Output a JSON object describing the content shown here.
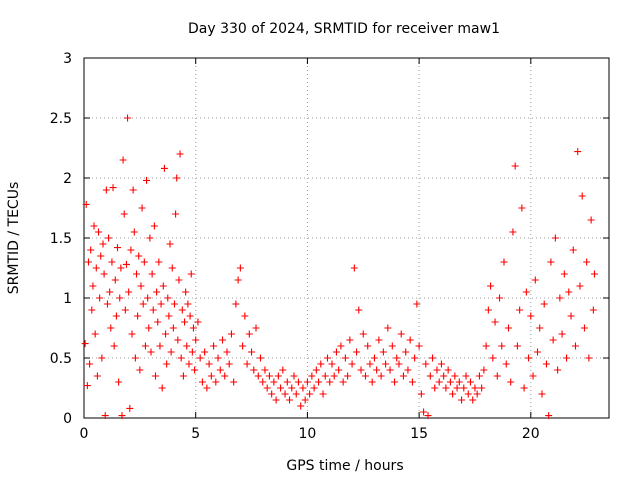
{
  "chart_data": {
    "type": "scatter",
    "title": "Day 330 of 2024, SRMTID for receiver maw1",
    "xlabel": "GPS time / hours",
    "ylabel": "SRMTID / TECUs",
    "xlim": [
      0,
      23.5
    ],
    "ylim": [
      0,
      3
    ],
    "x_ticks": [
      0,
      5,
      10,
      15,
      20
    ],
    "x_tick_labels": [
      "0",
      "5",
      "10",
      "15",
      "20"
    ],
    "y_ticks": [
      0,
      0.5,
      1,
      1.5,
      2,
      2.5,
      3
    ],
    "y_tick_labels": [
      "0",
      "0.5",
      "1",
      "1.5",
      "2",
      "2.5",
      "3"
    ],
    "grid": true,
    "marker": "+",
    "marker_color": "#ff0000",
    "series": [
      {
        "name": "SRMTID",
        "points": [
          [
            0.05,
            0.62
          ],
          [
            0.1,
            1.78
          ],
          [
            0.15,
            0.27
          ],
          [
            0.2,
            1.3
          ],
          [
            0.25,
            0.45
          ],
          [
            0.3,
            1.4
          ],
          [
            0.35,
            0.9
          ],
          [
            0.4,
            1.1
          ],
          [
            0.45,
            1.6
          ],
          [
            0.5,
            0.7
          ],
          [
            0.55,
            1.25
          ],
          [
            0.6,
            0.35
          ],
          [
            0.65,
            1.55
          ],
          [
            0.7,
            1.0
          ],
          [
            0.75,
            1.35
          ],
          [
            0.8,
            0.5
          ],
          [
            0.85,
            1.45
          ],
          [
            0.9,
            1.2
          ],
          [
            0.95,
            0.02
          ],
          [
            1.0,
            1.9
          ],
          [
            1.05,
            0.95
          ],
          [
            1.1,
            1.5
          ],
          [
            1.15,
            1.05
          ],
          [
            1.2,
            0.75
          ],
          [
            1.25,
            1.3
          ],
          [
            1.3,
            1.92
          ],
          [
            1.35,
            0.6
          ],
          [
            1.4,
            1.15
          ],
          [
            1.45,
            0.85
          ],
          [
            1.5,
            1.42
          ],
          [
            1.55,
            0.3
          ],
          [
            1.6,
            1.0
          ],
          [
            1.65,
            1.25
          ],
          [
            1.7,
            0.02
          ],
          [
            1.75,
            2.15
          ],
          [
            1.8,
            1.7
          ],
          [
            1.85,
            0.9
          ],
          [
            1.9,
            1.28
          ],
          [
            1.95,
            2.5
          ],
          [
            2.0,
            1.05
          ],
          [
            2.05,
            0.08
          ],
          [
            2.1,
            1.4
          ],
          [
            2.15,
            0.7
          ],
          [
            2.2,
            1.9
          ],
          [
            2.25,
            1.55
          ],
          [
            2.3,
            0.5
          ],
          [
            2.35,
            1.2
          ],
          [
            2.4,
            0.85
          ],
          [
            2.45,
            1.35
          ],
          [
            2.5,
            0.4
          ],
          [
            2.55,
            1.1
          ],
          [
            2.6,
            1.75
          ],
          [
            2.65,
            0.95
          ],
          [
            2.7,
            1.3
          ],
          [
            2.75,
            0.6
          ],
          [
            2.8,
            1.98
          ],
          [
            2.85,
            1.0
          ],
          [
            2.9,
            0.75
          ],
          [
            2.95,
            1.5
          ],
          [
            3.0,
            0.55
          ],
          [
            3.05,
            1.2
          ],
          [
            3.1,
            0.9
          ],
          [
            3.15,
            1.6
          ],
          [
            3.2,
            0.35
          ],
          [
            3.25,
            1.05
          ],
          [
            3.3,
            0.8
          ],
          [
            3.35,
            1.3
          ],
          [
            3.4,
            0.6
          ],
          [
            3.45,
            0.95
          ],
          [
            3.5,
            0.25
          ],
          [
            3.55,
            1.1
          ],
          [
            3.6,
            2.08
          ],
          [
            3.65,
            0.7
          ],
          [
            3.7,
            0.45
          ],
          [
            3.75,
            1.0
          ],
          [
            3.8,
            0.85
          ],
          [
            3.85,
            1.45
          ],
          [
            3.9,
            0.55
          ],
          [
            3.95,
            1.25
          ],
          [
            4.0,
            0.75
          ],
          [
            4.05,
            0.95
          ],
          [
            4.1,
            1.7
          ],
          [
            4.15,
            2.0
          ],
          [
            4.2,
            0.65
          ],
          [
            4.25,
            1.15
          ],
          [
            4.3,
            2.2
          ],
          [
            4.35,
            0.5
          ],
          [
            4.4,
            0.9
          ],
          [
            4.45,
            0.35
          ],
          [
            4.5,
            0.8
          ],
          [
            4.55,
            1.05
          ],
          [
            4.6,
            0.6
          ],
          [
            4.65,
            0.95
          ],
          [
            4.7,
            0.45
          ],
          [
            4.75,
            0.85
          ],
          [
            4.8,
            1.2
          ],
          [
            4.85,
            0.55
          ],
          [
            4.9,
            0.75
          ],
          [
            4.95,
            0.4
          ],
          [
            5.0,
            0.65
          ],
          [
            5.1,
            0.8
          ],
          [
            5.2,
            0.5
          ],
          [
            5.3,
            0.3
          ],
          [
            5.4,
            0.55
          ],
          [
            5.5,
            0.25
          ],
          [
            5.6,
            0.45
          ],
          [
            5.7,
            0.35
          ],
          [
            5.8,
            0.6
          ],
          [
            5.9,
            0.3
          ],
          [
            6.0,
            0.5
          ],
          [
            6.1,
            0.4
          ],
          [
            6.2,
            0.65
          ],
          [
            6.3,
            0.35
          ],
          [
            6.4,
            0.55
          ],
          [
            6.5,
            0.45
          ],
          [
            6.6,
            0.7
          ],
          [
            6.7,
            0.3
          ],
          [
            6.8,
            0.95
          ],
          [
            6.9,
            1.15
          ],
          [
            7.0,
            1.25
          ],
          [
            7.1,
            0.6
          ],
          [
            7.2,
            0.85
          ],
          [
            7.3,
            0.45
          ],
          [
            7.4,
            0.7
          ],
          [
            7.5,
            0.55
          ],
          [
            7.6,
            0.4
          ],
          [
            7.7,
            0.75
          ],
          [
            7.8,
            0.35
          ],
          [
            7.9,
            0.5
          ],
          [
            8.0,
            0.3
          ],
          [
            8.1,
            0.4
          ],
          [
            8.2,
            0.25
          ],
          [
            8.3,
            0.35
          ],
          [
            8.4,
            0.2
          ],
          [
            8.5,
            0.3
          ],
          [
            8.6,
            0.15
          ],
          [
            8.7,
            0.35
          ],
          [
            8.8,
            0.25
          ],
          [
            8.9,
            0.4
          ],
          [
            9.0,
            0.2
          ],
          [
            9.1,
            0.3
          ],
          [
            9.2,
            0.15
          ],
          [
            9.3,
            0.25
          ],
          [
            9.4,
            0.35
          ],
          [
            9.5,
            0.2
          ],
          [
            9.6,
            0.3
          ],
          [
            9.7,
            0.1
          ],
          [
            9.8,
            0.25
          ],
          [
            9.9,
            0.15
          ],
          [
            10.0,
            0.3
          ],
          [
            10.1,
            0.2
          ],
          [
            10.2,
            0.35
          ],
          [
            10.3,
            0.25
          ],
          [
            10.4,
            0.4
          ],
          [
            10.5,
            0.3
          ],
          [
            10.6,
            0.45
          ],
          [
            10.7,
            0.2
          ],
          [
            10.8,
            0.35
          ],
          [
            10.9,
            0.5
          ],
          [
            11.0,
            0.3
          ],
          [
            11.1,
            0.45
          ],
          [
            11.2,
            0.35
          ],
          [
            11.3,
            0.55
          ],
          [
            11.4,
            0.4
          ],
          [
            11.5,
            0.6
          ],
          [
            11.6,
            0.3
          ],
          [
            11.7,
            0.5
          ],
          [
            11.8,
            0.35
          ],
          [
            11.9,
            0.65
          ],
          [
            12.0,
            0.45
          ],
          [
            12.1,
            1.25
          ],
          [
            12.2,
            0.55
          ],
          [
            12.3,
            0.9
          ],
          [
            12.4,
            0.4
          ],
          [
            12.5,
            0.7
          ],
          [
            12.6,
            0.35
          ],
          [
            12.7,
            0.6
          ],
          [
            12.8,
            0.45
          ],
          [
            12.9,
            0.3
          ],
          [
            13.0,
            0.5
          ],
          [
            13.1,
            0.4
          ],
          [
            13.2,
            0.65
          ],
          [
            13.3,
            0.35
          ],
          [
            13.4,
            0.55
          ],
          [
            13.5,
            0.45
          ],
          [
            13.6,
            0.75
          ],
          [
            13.7,
            0.4
          ],
          [
            13.8,
            0.6
          ],
          [
            13.9,
            0.3
          ],
          [
            14.0,
            0.5
          ],
          [
            14.1,
            0.45
          ],
          [
            14.2,
            0.7
          ],
          [
            14.3,
            0.35
          ],
          [
            14.4,
            0.55
          ],
          [
            14.5,
            0.4
          ],
          [
            14.6,
            0.65
          ],
          [
            14.7,
            0.3
          ],
          [
            14.8,
            0.5
          ],
          [
            14.9,
            0.95
          ],
          [
            15.0,
            0.6
          ],
          [
            15.1,
            0.2
          ],
          [
            15.2,
            0.05
          ],
          [
            15.3,
            0.45
          ],
          [
            15.4,
            0.02
          ],
          [
            15.5,
            0.35
          ],
          [
            15.6,
            0.5
          ],
          [
            15.7,
            0.25
          ],
          [
            15.8,
            0.4
          ],
          [
            15.9,
            0.3
          ],
          [
            16.0,
            0.45
          ],
          [
            16.1,
            0.35
          ],
          [
            16.2,
            0.25
          ],
          [
            16.3,
            0.4
          ],
          [
            16.4,
            0.3
          ],
          [
            16.5,
            0.2
          ],
          [
            16.6,
            0.35
          ],
          [
            16.7,
            0.25
          ],
          [
            16.8,
            0.3
          ],
          [
            16.9,
            0.15
          ],
          [
            17.0,
            0.25
          ],
          [
            17.1,
            0.35
          ],
          [
            17.2,
            0.2
          ],
          [
            17.3,
            0.3
          ],
          [
            17.4,
            0.15
          ],
          [
            17.5,
            0.25
          ],
          [
            17.6,
            0.2
          ],
          [
            17.7,
            0.35
          ],
          [
            17.8,
            0.25
          ],
          [
            17.9,
            0.4
          ],
          [
            18.0,
            0.6
          ],
          [
            18.1,
            0.9
          ],
          [
            18.2,
            1.1
          ],
          [
            18.3,
            0.5
          ],
          [
            18.4,
            0.8
          ],
          [
            18.5,
            0.35
          ],
          [
            18.6,
            1.0
          ],
          [
            18.7,
            0.6
          ],
          [
            18.8,
            1.3
          ],
          [
            18.9,
            0.45
          ],
          [
            19.0,
            0.75
          ],
          [
            19.1,
            0.3
          ],
          [
            19.2,
            1.55
          ],
          [
            19.3,
            2.1
          ],
          [
            19.4,
            0.6
          ],
          [
            19.5,
            0.9
          ],
          [
            19.6,
            1.75
          ],
          [
            19.7,
            0.25
          ],
          [
            19.8,
            1.05
          ],
          [
            19.9,
            0.5
          ],
          [
            20.0,
            0.85
          ],
          [
            20.1,
            0.35
          ],
          [
            20.2,
            1.15
          ],
          [
            20.3,
            0.55
          ],
          [
            20.4,
            0.75
          ],
          [
            20.5,
            0.2
          ],
          [
            20.6,
            0.95
          ],
          [
            20.7,
            0.45
          ],
          [
            20.8,
            0.02
          ],
          [
            20.9,
            1.3
          ],
          [
            21.0,
            0.65
          ],
          [
            21.1,
            1.5
          ],
          [
            21.2,
            0.4
          ],
          [
            21.3,
            1.0
          ],
          [
            21.4,
            0.7
          ],
          [
            21.5,
            1.2
          ],
          [
            21.6,
            0.5
          ],
          [
            21.7,
            1.05
          ],
          [
            21.8,
            0.85
          ],
          [
            21.9,
            1.4
          ],
          [
            22.0,
            0.6
          ],
          [
            22.1,
            2.22
          ],
          [
            22.2,
            1.1
          ],
          [
            22.3,
            1.85
          ],
          [
            22.4,
            0.75
          ],
          [
            22.5,
            1.3
          ],
          [
            22.6,
            0.5
          ],
          [
            22.7,
            1.65
          ],
          [
            22.8,
            0.9
          ],
          [
            22.85,
            1.2
          ]
        ]
      }
    ]
  }
}
